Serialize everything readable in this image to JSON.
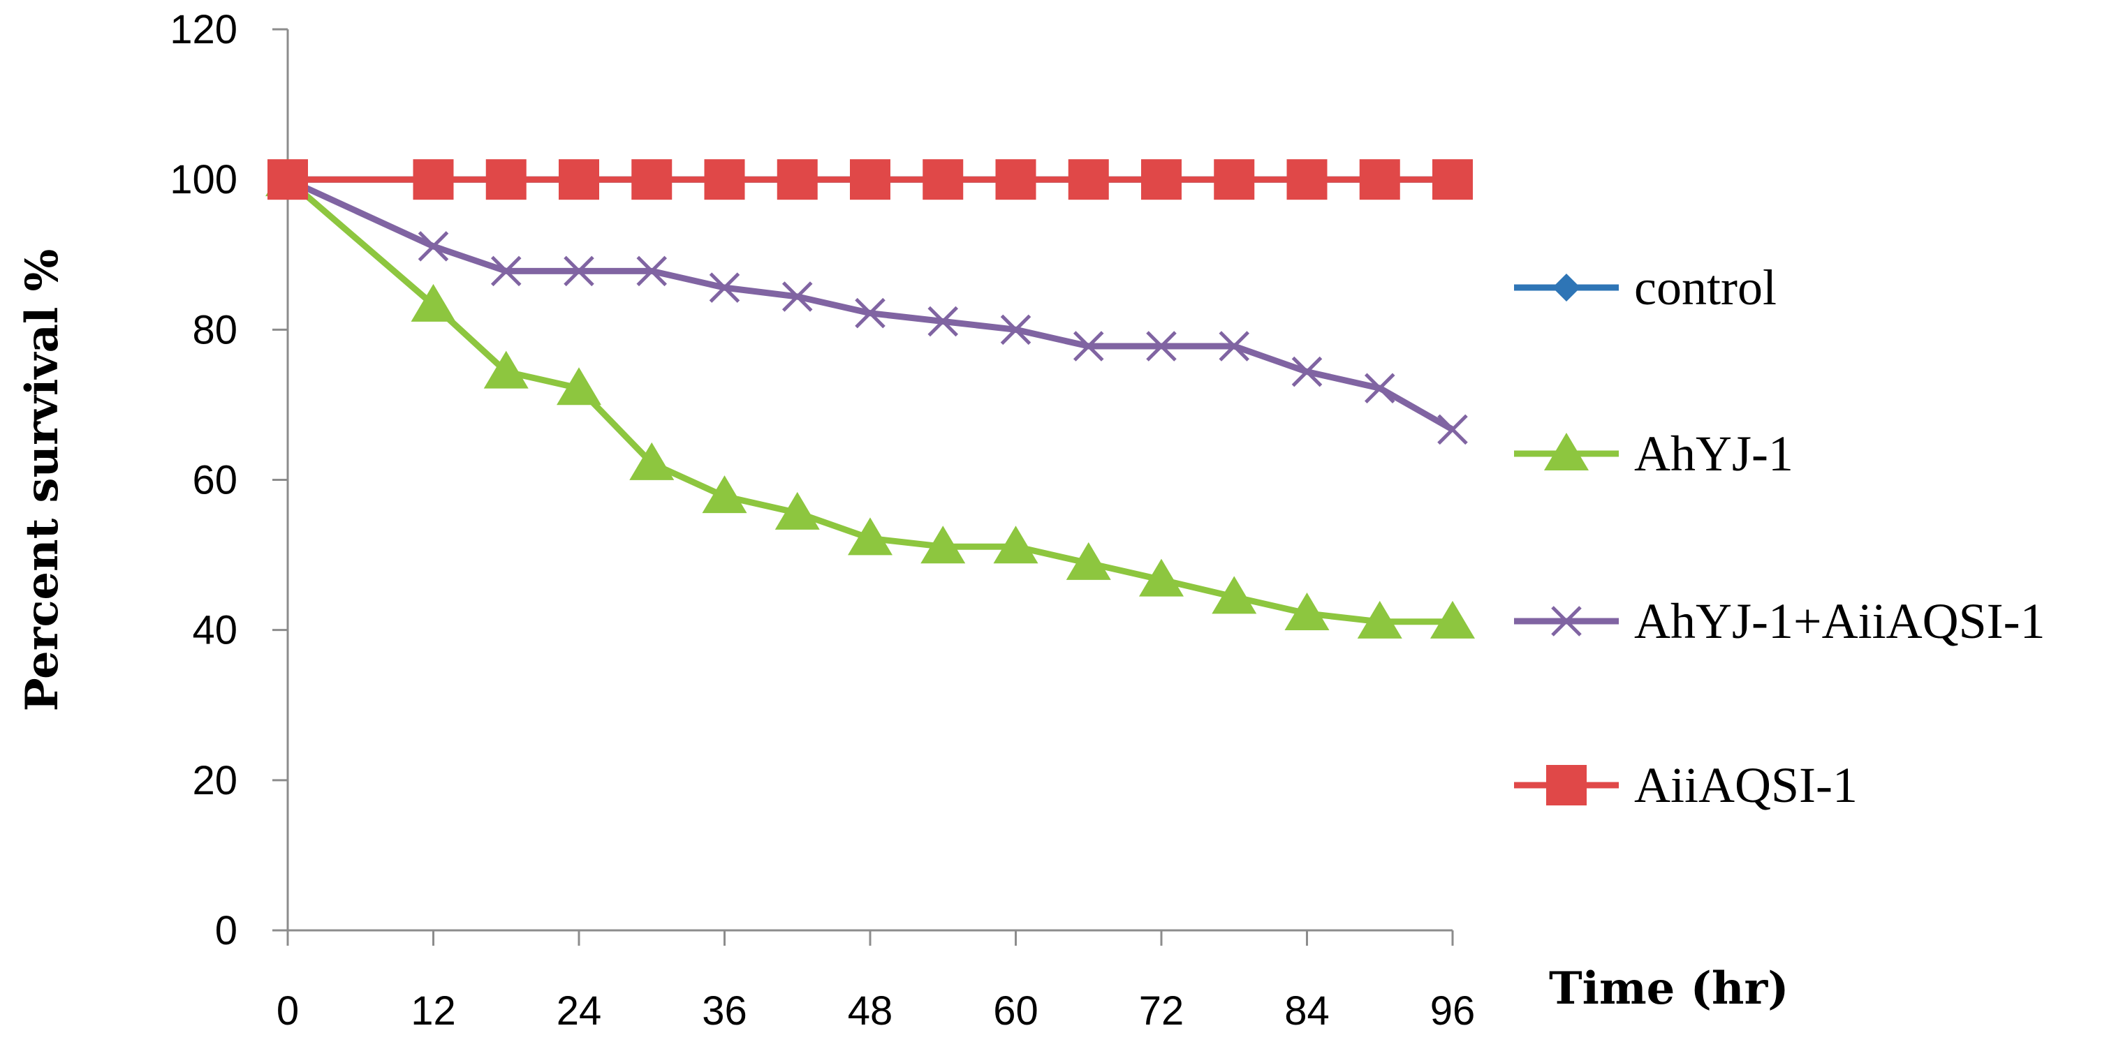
{
  "chart_data": {
    "type": "line",
    "title": "",
    "xlabel": "Time (hr)",
    "ylabel": "Percent survival %",
    "xlim": [
      0,
      96
    ],
    "ylim": [
      0,
      120
    ],
    "x_ticks": [
      0,
      12,
      24,
      36,
      48,
      60,
      72,
      84,
      96
    ],
    "y_ticks": [
      0,
      20,
      40,
      60,
      80,
      100,
      120
    ],
    "grid": false,
    "legend_position": "right",
    "x": [
      0,
      12,
      18,
      24,
      30,
      36,
      42,
      48,
      54,
      60,
      66,
      72,
      78,
      84,
      90,
      96
    ],
    "series": [
      {
        "name": "control",
        "color": "#2e75b6",
        "marker": "diamond",
        "values": [
          100,
          100,
          100,
          100,
          100,
          100,
          100,
          100,
          100,
          100,
          100,
          100,
          100,
          100,
          100,
          100
        ]
      },
      {
        "name": "AhYJ-1",
        "color": "#8dc63f",
        "marker": "triangle",
        "values": [
          100,
          83.3,
          74.4,
          72.2,
          62.2,
          57.8,
          55.6,
          52.2,
          51.1,
          51.1,
          48.9,
          46.7,
          44.4,
          42.2,
          41.1,
          41.1
        ]
      },
      {
        "name": "AhYJ-1+AiiAQSI-1",
        "color": "#8064a2",
        "marker": "x",
        "values": [
          100,
          91.1,
          87.8,
          87.8,
          87.8,
          85.6,
          84.4,
          82.2,
          81.1,
          80,
          77.8,
          77.8,
          77.8,
          74.4,
          72.2,
          66.7
        ]
      },
      {
        "name": "AiiAQSI-1",
        "color": "#e04848",
        "marker": "square",
        "values": [
          100,
          100,
          100,
          100,
          100,
          100,
          100,
          100,
          100,
          100,
          100,
          100,
          100,
          100,
          100,
          100
        ]
      }
    ]
  }
}
